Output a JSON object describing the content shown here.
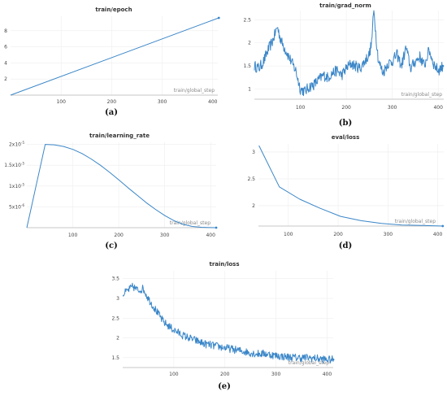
{
  "chart_data": [
    {
      "id": "a",
      "type": "line",
      "title": "train/epoch",
      "xlabel": "train/global_step",
      "caption": "(a)",
      "xlim": [
        0,
        410
      ],
      "ylim": [
        0,
        9.8
      ],
      "xticks": [
        100,
        200,
        300,
        400
      ],
      "yticks": [
        2,
        4,
        6,
        8
      ],
      "ytick_labels": [
        "2",
        "4",
        "6",
        "8"
      ],
      "series": [
        {
          "x": [
            0,
            412
          ],
          "y": [
            0,
            9.6
          ]
        }
      ],
      "color": "#3a86c8"
    },
    {
      "id": "b",
      "type": "line",
      "title": "train/grad_norm",
      "xlabel": "train/global_step",
      "caption": "(b)",
      "xlim": [
        0,
        412
      ],
      "ylim": [
        0.78,
        2.7
      ],
      "xticks": [
        100,
        200,
        300,
        400
      ],
      "yticks": [
        1,
        1.5,
        2,
        2.5
      ],
      "ytick_labels": [
        "1",
        "1.5",
        "2",
        "2.5"
      ],
      "series": [
        {
          "x": [
            0,
            10,
            20,
            30,
            40,
            45,
            50,
            55,
            60,
            70,
            80,
            90,
            100,
            110,
            120,
            130,
            140,
            150,
            160,
            170,
            180,
            190,
            200,
            210,
            220,
            230,
            240,
            250,
            255,
            260,
            265,
            270,
            280,
            290,
            300,
            310,
            320,
            330,
            340,
            350,
            360,
            370,
            380,
            390,
            400,
            410
          ],
          "y": [
            1.5,
            1.45,
            1.6,
            1.85,
            2.05,
            2.2,
            2.35,
            2.15,
            2.0,
            1.8,
            1.6,
            1.4,
            1.0,
            0.95,
            1.05,
            1.1,
            1.2,
            1.3,
            1.25,
            1.35,
            1.4,
            1.3,
            1.45,
            1.55,
            1.5,
            1.45,
            1.6,
            1.75,
            2.0,
            2.75,
            2.1,
            1.6,
            1.35,
            1.55,
            1.6,
            1.75,
            1.5,
            1.9,
            1.45,
            1.6,
            1.7,
            1.5,
            1.85,
            1.55,
            1.4,
            1.5
          ]
        }
      ],
      "noise": 0.12,
      "color": "#3a86c8"
    },
    {
      "id": "c",
      "type": "line",
      "title": "train/learning_rate",
      "xlabel": "train/global_step",
      "caption": "(c)",
      "xlim": [
        0,
        412
      ],
      "ylim": [
        0,
        2.05e-05
      ],
      "xticks": [
        100,
        200,
        300,
        400
      ],
      "yticks": [
        5e-06,
        1e-05,
        1.5e-05,
        2e-05
      ],
      "ytick_labels": [
        [
          "5x10",
          "-6"
        ],
        [
          "1x10",
          "-5"
        ],
        [
          "1.5x10",
          "-5"
        ],
        [
          "2x10",
          "-5"
        ]
      ],
      "series": [
        {
          "x": [
            0,
            10,
            20,
            30,
            40,
            60,
            80,
            100,
            120,
            140,
            160,
            180,
            200,
            220,
            240,
            260,
            280,
            300,
            320,
            340,
            360,
            380,
            400,
            412
          ],
          "y": [
            0,
            5e-06,
            1e-05,
            1.5e-05,
            2e-05,
            1.99e-05,
            1.95e-05,
            1.88e-05,
            1.78e-05,
            1.65e-05,
            1.5e-05,
            1.33e-05,
            1.15e-05,
            9.6e-06,
            7.8e-06,
            6e-06,
            4.4e-06,
            2.9e-06,
            1.7e-06,
            8e-07,
            3e-07,
            1e-07,
            2e-08,
            0
          ]
        }
      ],
      "color": "#3a86c8"
    },
    {
      "id": "d",
      "type": "line",
      "title": "eval/loss",
      "xlabel": "train/global_step",
      "caption": "(d)",
      "xlim": [
        40,
        412
      ],
      "ylim": [
        1.62,
        3.15
      ],
      "xticks": [
        100,
        200,
        300,
        400
      ],
      "yticks": [
        2,
        2.5,
        3
      ],
      "ytick_labels": [
        "2",
        "2.5",
        "3"
      ],
      "series": [
        {
          "x": [
            41,
            82,
            123,
            164,
            205,
            246,
            287,
            328,
            369,
            410
          ],
          "y": [
            3.12,
            2.35,
            2.12,
            1.95,
            1.8,
            1.72,
            1.67,
            1.64,
            1.63,
            1.62
          ]
        }
      ],
      "color": "#3a86c8"
    },
    {
      "id": "e",
      "type": "line",
      "title": "train/loss",
      "xlabel": "train/global_step",
      "caption": "(e)",
      "xlim": [
        0,
        412
      ],
      "ylim": [
        1.25,
        3.7
      ],
      "xticks": [
        100,
        200,
        300,
        400
      ],
      "yticks": [
        1.5,
        2,
        2.5,
        3,
        3.5
      ],
      "ytick_labels": [
        "1.5",
        "2",
        "2.5",
        "3",
        "3.5"
      ],
      "series": [
        {
          "x": [
            0,
            10,
            20,
            30,
            40,
            50,
            60,
            70,
            80,
            90,
            100,
            120,
            140,
            160,
            180,
            200,
            220,
            240,
            260,
            280,
            300,
            320,
            340,
            360,
            380,
            400,
            412
          ],
          "y": [
            3.1,
            3.2,
            3.3,
            3.2,
            3.25,
            3.0,
            2.8,
            2.6,
            2.4,
            2.3,
            2.2,
            2.05,
            1.95,
            1.85,
            1.8,
            1.75,
            1.7,
            1.65,
            1.6,
            1.6,
            1.55,
            1.52,
            1.5,
            1.5,
            1.48,
            1.45,
            1.45
          ]
        }
      ],
      "noise": 0.1,
      "color": "#3a86c8"
    }
  ]
}
